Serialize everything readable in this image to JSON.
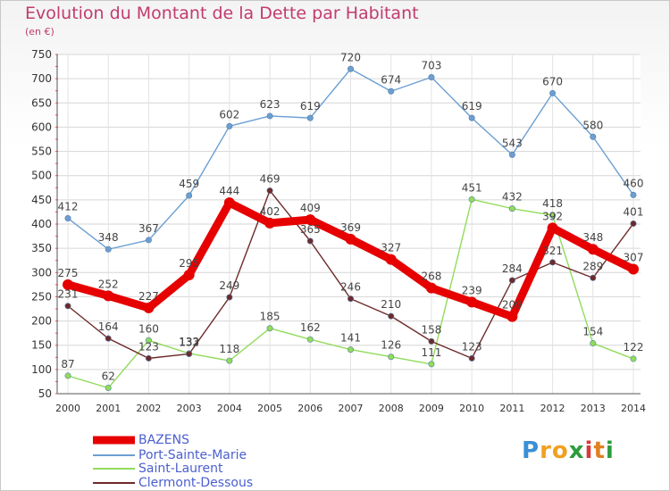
{
  "chart_data": {
    "type": "line",
    "title": "Evolution du Montant de la Dette par Habitant",
    "subtitle": "(en €)",
    "x": [
      "2000",
      "2001",
      "2002",
      "2003",
      "2004",
      "2005",
      "2006",
      "2007",
      "2008",
      "2009",
      "2010",
      "2011",
      "2012",
      "2013",
      "2014"
    ],
    "ylim": [
      50,
      750
    ],
    "yticks": [
      50,
      100,
      150,
      200,
      250,
      300,
      350,
      400,
      450,
      500,
      550,
      600,
      650,
      700,
      750
    ],
    "grid": true,
    "legend_position": "bottom-left",
    "series": [
      {
        "name": "BAZENS",
        "color": "#e60000",
        "values": [
          275,
          252,
          227,
          295,
          444,
          402,
          409,
          369,
          327,
          268,
          239,
          209,
          392,
          348,
          307
        ],
        "labels": [
          "275",
          "252",
          "227",
          "295",
          "444",
          "402",
          "409",
          "369",
          "327",
          "268",
          "239",
          "209",
          "392",
          "348",
          "307"
        ]
      },
      {
        "name": "Port-Sainte-Marie",
        "color": "#6b9fd2",
        "values": [
          412,
          348,
          367,
          459,
          602,
          623,
          619,
          720,
          674,
          703,
          619,
          543,
          670,
          580,
          460
        ],
        "labels": [
          "412",
          "348",
          "367",
          "459",
          "602",
          "623",
          "619",
          "720",
          "674",
          "703",
          "619",
          "543",
          "670",
          "580",
          "460"
        ]
      },
      {
        "name": "Saint-Laurent",
        "color": "#90dc5a",
        "values": [
          87,
          62,
          160,
          133,
          118,
          185,
          162,
          141,
          126,
          111,
          451,
          432,
          418,
          154,
          122
        ],
        "labels": [
          "87",
          "62",
          "160",
          "133",
          "118",
          "185",
          "162",
          "141",
          "126",
          "111",
          "451",
          "432",
          "418",
          "154",
          "122"
        ]
      },
      {
        "name": "Clermont-Dessous",
        "color": "#6e2a2a",
        "values": [
          231,
          164,
          123,
          132,
          249,
          469,
          365,
          246,
          210,
          158,
          123,
          284,
          321,
          289,
          401
        ],
        "labels": [
          "231",
          "164",
          "123",
          "132",
          "249",
          "469",
          "365",
          "246",
          "210",
          "158",
          "123",
          "284",
          "321",
          "289",
          "401"
        ]
      }
    ]
  },
  "brand": {
    "letters": [
      "P",
      "r",
      "o",
      "x",
      "i",
      "t",
      "i"
    ],
    "colors": [
      "#3a8fd6",
      "#f0a020",
      "#f0a020",
      "#2c9c3c",
      "#d63a3a",
      "#e08020",
      "#2c9c3c"
    ]
  }
}
